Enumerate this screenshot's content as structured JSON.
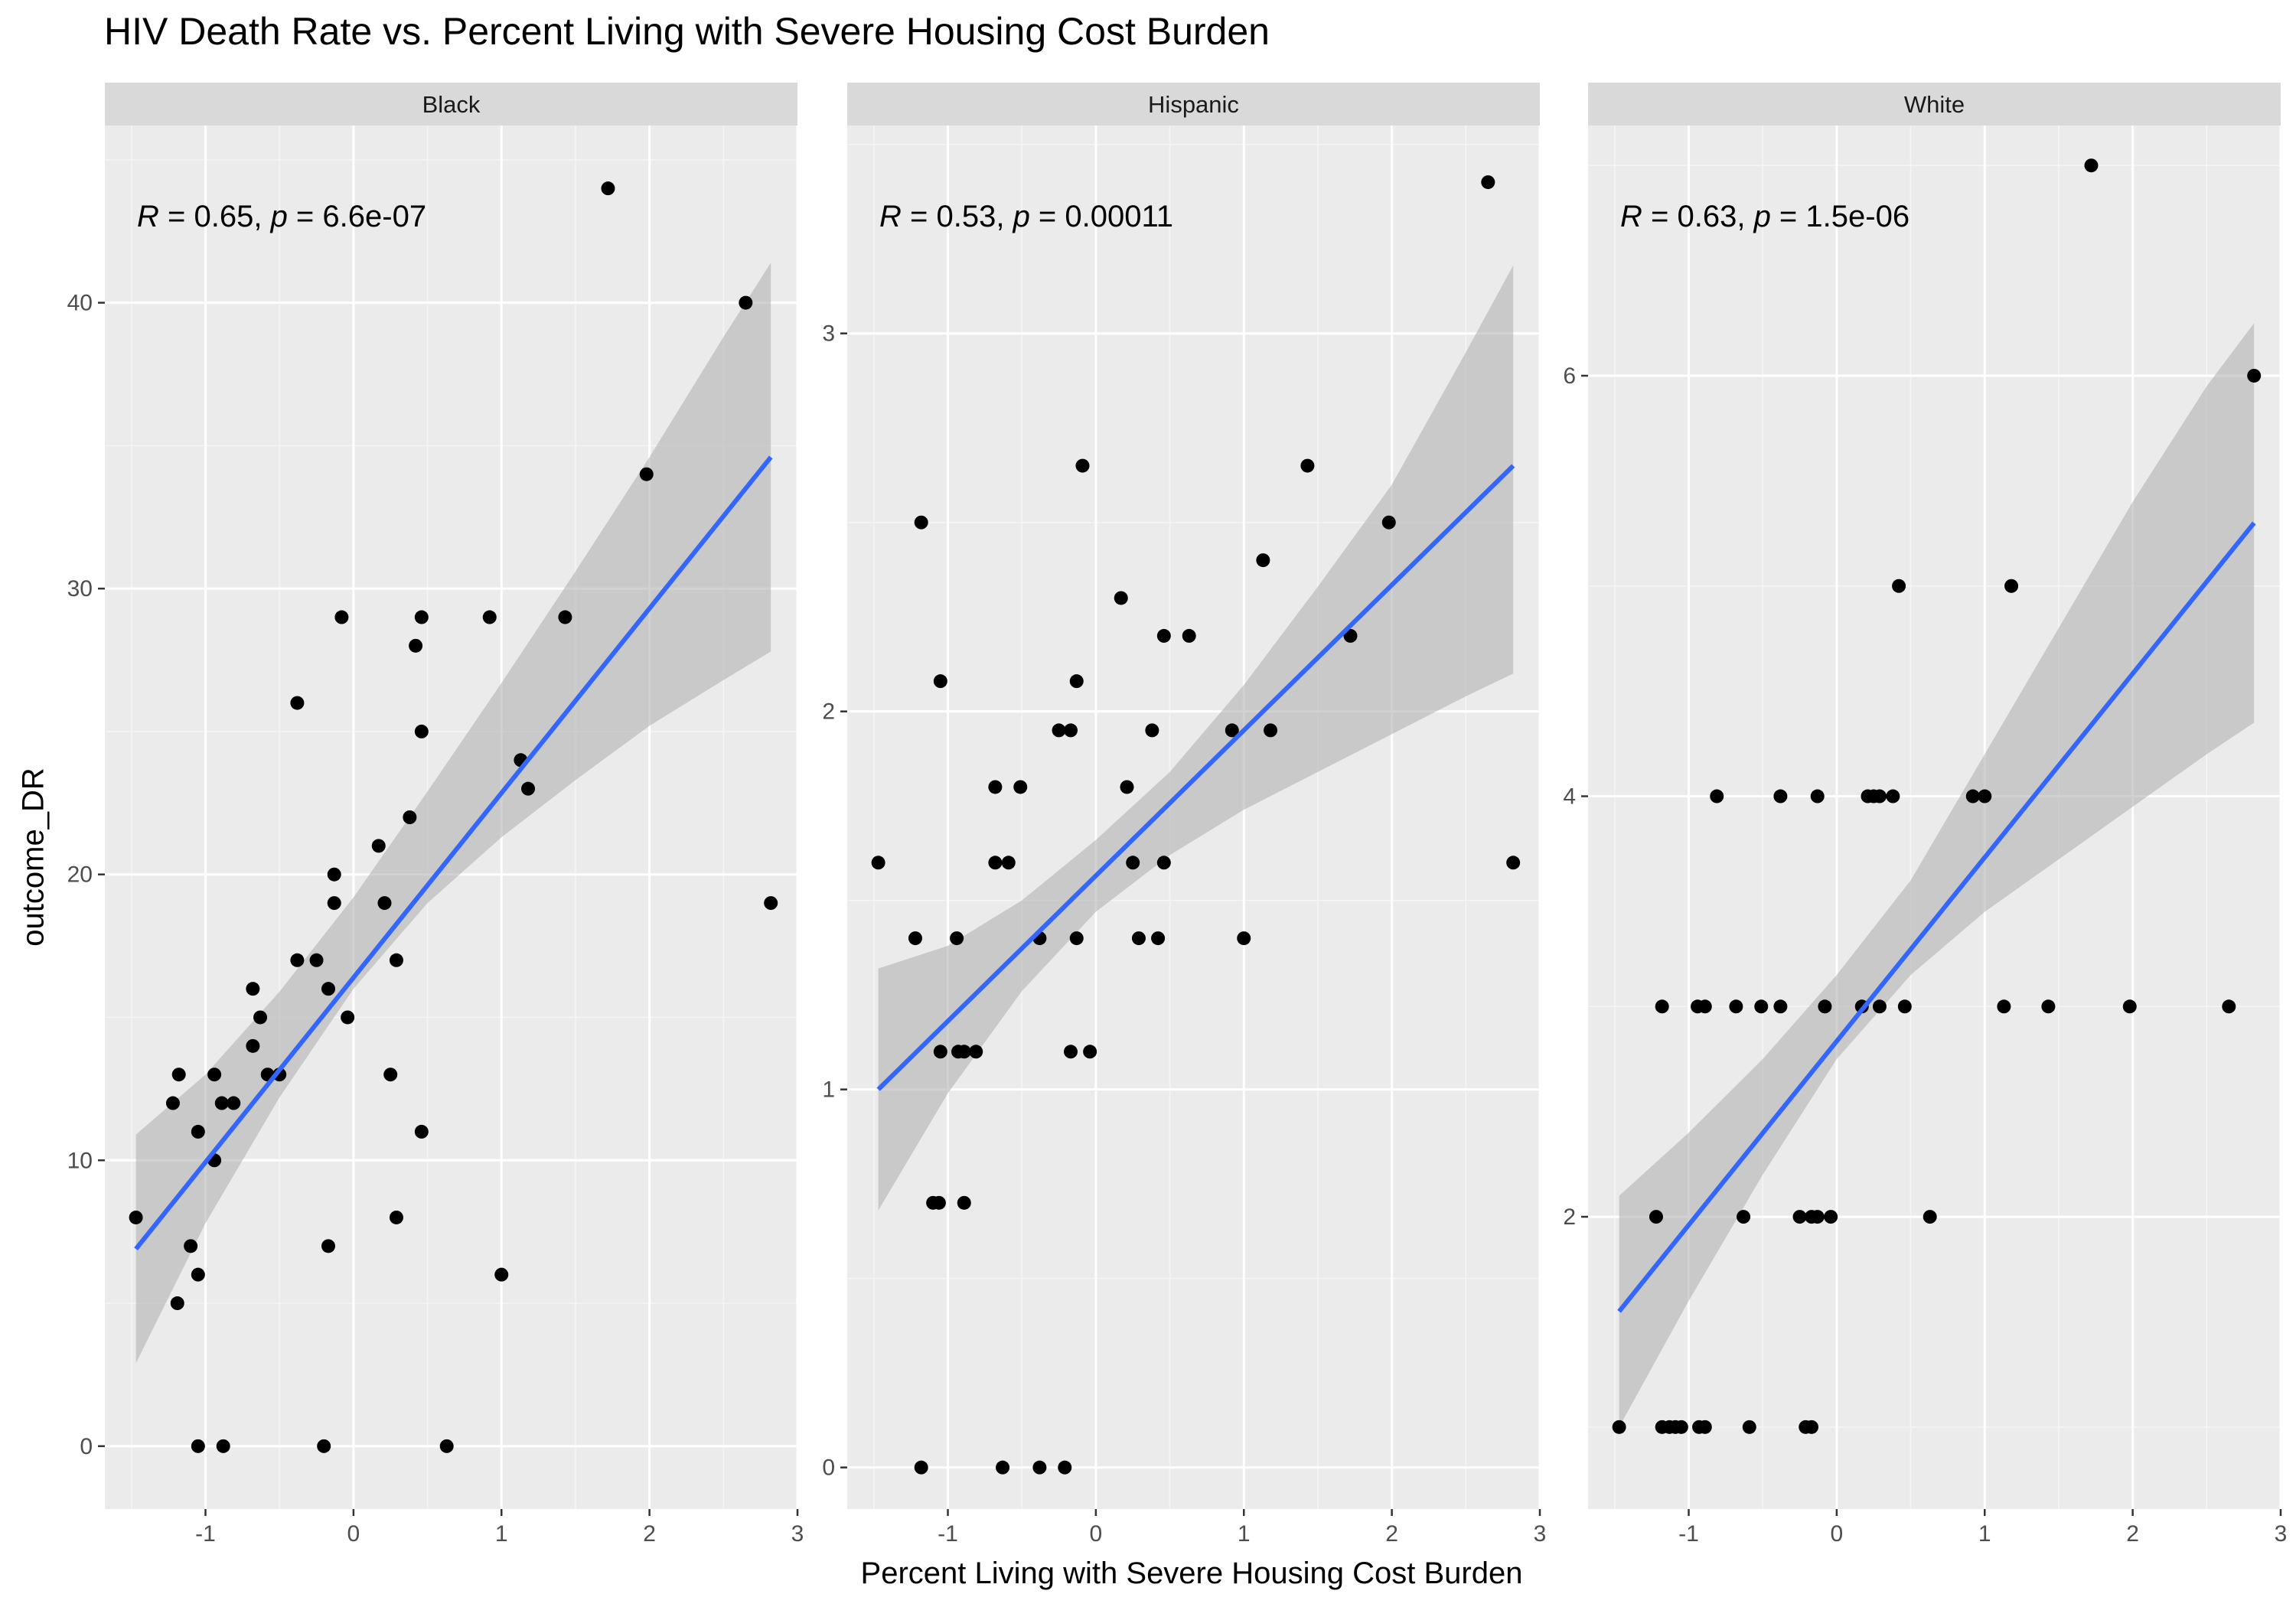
{
  "chart_data": {
    "type": "scatter",
    "title": "HIV Death Rate  vs. Percent Living with Severe Housing Cost Burden",
    "xlabel": "Percent Living with Severe Housing Cost Burden",
    "ylabel": "outcome_DR",
    "facet_style": "gray strips, gray panel background with white grid",
    "point_color": "#000000",
    "line_color": "#3366ff",
    "band_color": "#b3b3b3",
    "panel_bg": "#ebebeb",
    "strip_bg": "#d9d9d9",
    "panels": [
      {
        "name": "Black",
        "annotation": {
          "r": "0.65",
          "p": "6.6e-07"
        },
        "xlim": [
          -1.68,
          3.0
        ],
        "ylim": [
          -2.2,
          46.2
        ],
        "x_ticks": [
          -1,
          0,
          1,
          2,
          3
        ],
        "y_ticks": [
          0,
          10,
          20,
          30,
          40
        ],
        "fit": {
          "x": [
            -1.47,
            2.82
          ],
          "y": [
            6.9,
            34.6
          ]
        },
        "band": {
          "x": [
            -1.47,
            -1.0,
            -0.5,
            0.0,
            0.5,
            1.0,
            1.5,
            2.0,
            2.5,
            2.82
          ],
          "lower": [
            2.9,
            7.8,
            12.2,
            16.0,
            19.0,
            21.3,
            23.3,
            25.2,
            26.8,
            27.8
          ],
          "upper": [
            10.9,
            13.0,
            15.9,
            19.2,
            22.9,
            26.7,
            30.6,
            34.6,
            38.8,
            41.4
          ]
        },
        "points": [
          [
            -1.47,
            8
          ],
          [
            -1.22,
            12
          ],
          [
            -1.18,
            13
          ],
          [
            -1.19,
            5
          ],
          [
            -1.1,
            7
          ],
          [
            -1.05,
            11
          ],
          [
            -1.05,
            6
          ],
          [
            -1.05,
            0
          ],
          [
            -0.94,
            13
          ],
          [
            -0.94,
            10
          ],
          [
            -0.89,
            12
          ],
          [
            -0.88,
            0
          ],
          [
            -0.81,
            12
          ],
          [
            -0.68,
            16
          ],
          [
            -0.68,
            14
          ],
          [
            -0.63,
            15
          ],
          [
            -0.58,
            13
          ],
          [
            -0.5,
            13
          ],
          [
            -0.38,
            26
          ],
          [
            -0.38,
            17
          ],
          [
            -0.25,
            17
          ],
          [
            -0.2,
            0
          ],
          [
            -0.17,
            16
          ],
          [
            -0.17,
            7
          ],
          [
            -0.13,
            20
          ],
          [
            -0.13,
            19
          ],
          [
            -0.08,
            29
          ],
          [
            -0.04,
            15
          ],
          [
            0.17,
            21
          ],
          [
            0.21,
            19
          ],
          [
            0.25,
            13
          ],
          [
            0.29,
            17
          ],
          [
            0.29,
            8
          ],
          [
            0.38,
            22
          ],
          [
            0.42,
            28
          ],
          [
            0.46,
            29
          ],
          [
            0.46,
            25
          ],
          [
            0.46,
            11
          ],
          [
            0.63,
            0
          ],
          [
            0.92,
            29
          ],
          [
            1.0,
            6
          ],
          [
            1.13,
            24
          ],
          [
            1.18,
            23
          ],
          [
            1.43,
            29
          ],
          [
            1.72,
            44
          ],
          [
            1.98,
            34
          ],
          [
            2.65,
            40
          ],
          [
            2.82,
            19
          ]
        ]
      },
      {
        "name": "Hispanic",
        "annotation": {
          "r": "0.53",
          "p": "0.00011"
        },
        "xlim": [
          -1.68,
          3.0
        ],
        "ylim": [
          -0.11,
          3.55
        ],
        "x_ticks": [
          -1,
          0,
          1,
          2,
          3
        ],
        "y_ticks": [
          0,
          1,
          2,
          3
        ],
        "fit": {
          "x": [
            -1.47,
            2.82
          ],
          "y": [
            1.0,
            2.65
          ]
        },
        "band": {
          "x": [
            -1.47,
            -1.0,
            -0.5,
            0.0,
            0.5,
            1.0,
            1.5,
            2.0,
            2.5,
            2.82
          ],
          "lower": [
            0.68,
            0.99,
            1.26,
            1.47,
            1.62,
            1.74,
            1.84,
            1.94,
            2.04,
            2.1
          ],
          "upper": [
            1.32,
            1.38,
            1.5,
            1.66,
            1.84,
            2.07,
            2.33,
            2.6,
            2.95,
            3.18
          ]
        },
        "points": [
          [
            -1.47,
            1.6
          ],
          [
            -1.22,
            1.4
          ],
          [
            -1.18,
            2.5
          ],
          [
            -1.18,
            0.0
          ],
          [
            -1.1,
            0.7
          ],
          [
            -1.06,
            0.7
          ],
          [
            -1.05,
            2.08
          ],
          [
            -1.05,
            1.1
          ],
          [
            -0.94,
            1.4
          ],
          [
            -0.93,
            1.1
          ],
          [
            -0.89,
            1.1
          ],
          [
            -0.89,
            0.7
          ],
          [
            -0.81,
            1.1
          ],
          [
            -0.68,
            1.8
          ],
          [
            -0.68,
            1.6
          ],
          [
            -0.63,
            0.0
          ],
          [
            -0.59,
            1.6
          ],
          [
            -0.51,
            1.8
          ],
          [
            -0.38,
            1.4
          ],
          [
            -0.38,
            0.0
          ],
          [
            -0.25,
            1.95
          ],
          [
            -0.21,
            0.0
          ],
          [
            -0.17,
            1.95
          ],
          [
            -0.17,
            1.1
          ],
          [
            -0.13,
            2.08
          ],
          [
            -0.13,
            1.4
          ],
          [
            -0.09,
            2.65
          ],
          [
            -0.04,
            1.1
          ],
          [
            0.17,
            2.3
          ],
          [
            0.21,
            1.8
          ],
          [
            0.25,
            1.6
          ],
          [
            0.29,
            1.4
          ],
          [
            0.38,
            1.95
          ],
          [
            0.42,
            1.4
          ],
          [
            0.46,
            2.2
          ],
          [
            0.46,
            1.6
          ],
          [
            0.63,
            2.2
          ],
          [
            0.92,
            1.95
          ],
          [
            1.0,
            1.4
          ],
          [
            1.13,
            2.4
          ],
          [
            1.18,
            1.95
          ],
          [
            1.43,
            2.65
          ],
          [
            1.72,
            2.2
          ],
          [
            1.98,
            2.5
          ],
          [
            2.65,
            3.4
          ],
          [
            2.82,
            1.6
          ]
        ]
      },
      {
        "name": "White",
        "annotation": {
          "r": "0.63",
          "p": "1.5e-06"
        },
        "xlim": [
          -1.68,
          3.0
        ],
        "ylim": [
          0.61,
          7.19
        ],
        "x_ticks": [
          -1,
          0,
          1,
          2,
          3
        ],
        "y_ticks": [
          2,
          4,
          6
        ],
        "fit": {
          "x": [
            -1.47,
            2.82
          ],
          "y": [
            1.55,
            5.3
          ]
        },
        "band": {
          "x": [
            -1.47,
            -1.0,
            -0.5,
            0.0,
            0.5,
            1.0,
            1.5,
            2.0,
            2.5,
            2.82
          ],
          "lower": [
            1.0,
            1.6,
            2.2,
            2.75,
            3.15,
            3.45,
            3.7,
            3.95,
            4.2,
            4.35
          ],
          "upper": [
            2.1,
            2.4,
            2.75,
            3.15,
            3.6,
            4.2,
            4.8,
            5.4,
            5.95,
            6.25
          ]
        },
        "points": [
          [
            -1.47,
            1
          ],
          [
            -1.22,
            2
          ],
          [
            -1.18,
            3
          ],
          [
            -1.18,
            1
          ],
          [
            -1.13,
            1
          ],
          [
            -1.09,
            1
          ],
          [
            -1.05,
            1
          ],
          [
            -0.94,
            3
          ],
          [
            -0.93,
            1
          ],
          [
            -0.89,
            3
          ],
          [
            -0.89,
            1
          ],
          [
            -0.81,
            4
          ],
          [
            -0.68,
            3
          ],
          [
            -0.63,
            2
          ],
          [
            -0.59,
            1
          ],
          [
            -0.51,
            3
          ],
          [
            -0.38,
            4
          ],
          [
            -0.38,
            3
          ],
          [
            -0.25,
            2
          ],
          [
            -0.21,
            1
          ],
          [
            -0.17,
            1
          ],
          [
            -0.17,
            2
          ],
          [
            -0.13,
            4
          ],
          [
            -0.13,
            2
          ],
          [
            -0.08,
            3
          ],
          [
            -0.04,
            2
          ],
          [
            0.17,
            3
          ],
          [
            0.21,
            4
          ],
          [
            0.25,
            4
          ],
          [
            0.29,
            4
          ],
          [
            0.29,
            3
          ],
          [
            0.38,
            4
          ],
          [
            0.42,
            5
          ],
          [
            0.46,
            3
          ],
          [
            0.63,
            2
          ],
          [
            0.92,
            4
          ],
          [
            1.0,
            4
          ],
          [
            1.13,
            3
          ],
          [
            1.18,
            5
          ],
          [
            1.43,
            3
          ],
          [
            1.72,
            7
          ],
          [
            1.98,
            3
          ],
          [
            2.65,
            3
          ],
          [
            2.82,
            6
          ]
        ]
      }
    ]
  }
}
